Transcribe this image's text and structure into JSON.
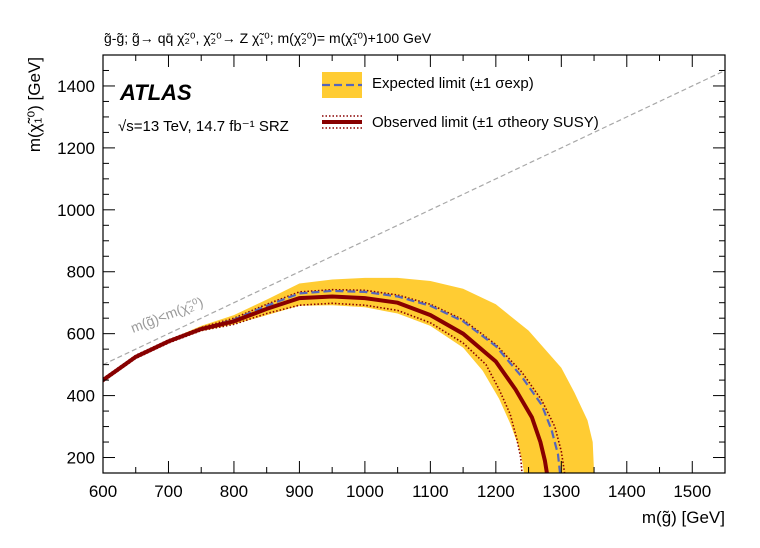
{
  "chart_data": {
    "type": "line",
    "title": "g̃-g̃; g̃→ qq̄ χ̃₂⁰, χ̃₂⁰→ Z χ̃₁⁰; m(χ̃₂⁰)= m(χ̃₁⁰)+100 GeV",
    "xlabel": "m(g̃) [GeV]",
    "ylabel": "m(χ̃₁⁰) [GeV]",
    "xlim": [
      600,
      1550
    ],
    "ylim": [
      150,
      1500
    ],
    "x_ticks": [
      600,
      700,
      800,
      900,
      1000,
      1100,
      1200,
      1300,
      1400,
      1500
    ],
    "y_ticks": [
      200,
      400,
      600,
      800,
      1000,
      1200,
      1400
    ],
    "experiment_label": "ATLAS",
    "energy_label": "√s=13 TeV, 14.7 fb⁻¹ SRZ",
    "diagonal_label": "m(g̃)<m(χ̃₂⁰)",
    "legend": {
      "placement": "top-center",
      "expected": "Expected limit (±1 σexp)",
      "observed": "Observed limit (±1 σtheory SUSY)"
    },
    "colors": {
      "band": "#ffcc33",
      "expected": "#5566bb",
      "observed": "#880000",
      "diagonal": "#a8a8a8"
    },
    "series": [
      {
        "name": "Expected limit (±1 σexp)",
        "x": [
          600,
          650,
          700,
          750,
          800,
          850,
          900,
          950,
          1000,
          1050,
          1100,
          1150,
          1200,
          1240,
          1270,
          1285,
          1295,
          1298
        ],
        "y": [
          450,
          525,
          575,
          615,
          645,
          690,
          730,
          738,
          735,
          720,
          690,
          640,
          560,
          460,
          370,
          290,
          210,
          150
        ]
      },
      {
        "name": "Observed limit (±1 σtheory SUSY)",
        "x": [
          600,
          650,
          700,
          750,
          800,
          850,
          900,
          950,
          1000,
          1050,
          1100,
          1150,
          1200,
          1230,
          1255,
          1268,
          1275,
          1278
        ],
        "y": [
          450,
          525,
          575,
          615,
          640,
          680,
          715,
          720,
          715,
          700,
          660,
          600,
          510,
          420,
          330,
          250,
          190,
          150
        ]
      },
      {
        "name": "Observed +1σ",
        "x": [
          600,
          650,
          700,
          750,
          800,
          850,
          900,
          950,
          1000,
          1050,
          1100,
          1150,
          1200,
          1240,
          1270,
          1290,
          1300,
          1305
        ],
        "y": [
          455,
          530,
          580,
          620,
          650,
          695,
          735,
          742,
          740,
          725,
          695,
          645,
          565,
          475,
          385,
          300,
          220,
          150
        ]
      },
      {
        "name": "Observed -1σ",
        "x": [
          600,
          650,
          700,
          750,
          800,
          850,
          900,
          950,
          1000,
          1050,
          1100,
          1150,
          1185,
          1205,
          1222,
          1232,
          1238,
          1240
        ],
        "y": [
          445,
          520,
          570,
          610,
          630,
          665,
          692,
          698,
          692,
          675,
          635,
          570,
          500,
          420,
          340,
          260,
          200,
          150
        ]
      },
      {
        "name": "Expected band upper",
        "x": [
          600,
          650,
          700,
          750,
          800,
          850,
          900,
          950,
          1000,
          1050,
          1100,
          1150,
          1200,
          1250,
          1300,
          1320,
          1340,
          1348,
          1350
        ],
        "y": [
          450,
          530,
          580,
          625,
          660,
          710,
          762,
          775,
          780,
          780,
          770,
          745,
          695,
          610,
          490,
          410,
          320,
          250,
          150
        ]
      },
      {
        "name": "Expected band lower",
        "x": [
          600,
          650,
          700,
          750,
          800,
          850,
          900,
          950,
          1000,
          1050,
          1100,
          1150,
          1180,
          1205,
          1222,
          1234,
          1240,
          1243
        ],
        "y": [
          450,
          520,
          570,
          608,
          630,
          660,
          690,
          692,
          685,
          665,
          625,
          555,
          480,
          390,
          310,
          240,
          190,
          150
        ]
      }
    ]
  }
}
